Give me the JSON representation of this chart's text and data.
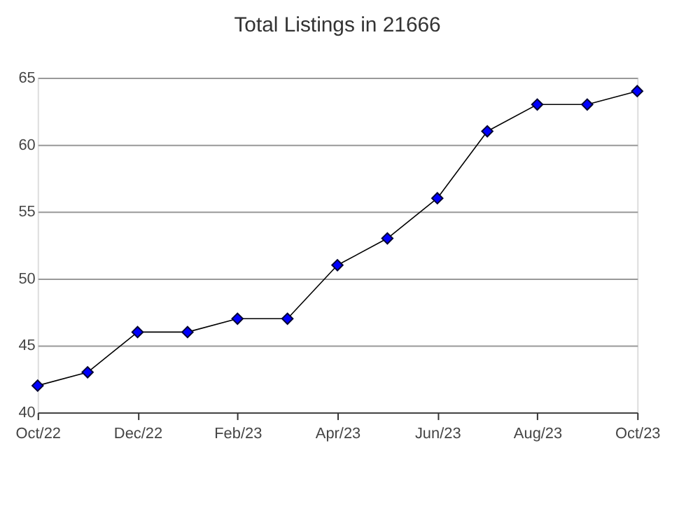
{
  "chart_data": {
    "type": "line",
    "title": "Total Listings in 21666",
    "categories": [
      "Oct/22",
      null,
      "Dec/22",
      null,
      "Feb/23",
      null,
      "Apr/23",
      null,
      "Jun/23",
      null,
      "Aug/23",
      null,
      "Oct/23"
    ],
    "series": [
      {
        "color": "#000000",
        "marker": "none",
        "values": [
          42,
          43,
          46,
          46,
          47,
          47,
          51,
          53,
          56,
          61,
          63,
          63,
          64
        ]
      },
      {
        "type": "scatter",
        "marker": "diamond",
        "color": "#0000ff",
        "values": [
          42,
          43,
          46,
          46,
          47,
          47,
          51,
          53,
          56,
          61,
          63,
          63,
          64
        ]
      }
    ],
    "ylim": [
      40,
      65
    ],
    "yticks": [
      40,
      45,
      50,
      55,
      60,
      65
    ],
    "grid": "y",
    "line_style": "solid"
  }
}
